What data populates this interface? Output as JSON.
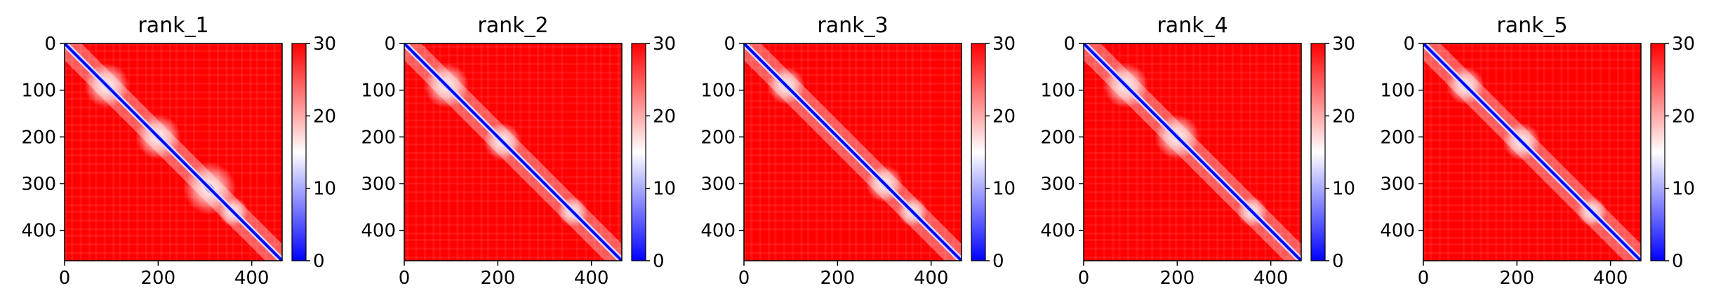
{
  "colors": {
    "low": "#0000ff",
    "mid": "#ffffff",
    "high": "#ff0000",
    "axis": "#000000",
    "background": "#ffffff"
  },
  "chart_data": [
    {
      "type": "heatmap",
      "title": "rank_1",
      "xlabel": "",
      "ylabel": "",
      "x_range": [
        0,
        465
      ],
      "y_range": [
        0,
        465
      ],
      "x_ticks": [
        0,
        200,
        400
      ],
      "y_ticks": [
        0,
        100,
        200,
        300,
        400
      ],
      "colorbar": {
        "range": [
          0,
          30
        ],
        "ticks": [
          0,
          10,
          20,
          30
        ],
        "colormap": "bwr"
      },
      "diagonal_domains": [
        {
          "center": 90,
          "radius": 30
        },
        {
          "center": 200,
          "radius": 30
        },
        {
          "center": 310,
          "radius": 35
        },
        {
          "center": 360,
          "radius": 20
        }
      ]
    },
    {
      "type": "heatmap",
      "title": "rank_2",
      "xlabel": "",
      "ylabel": "",
      "x_range": [
        0,
        465
      ],
      "y_range": [
        0,
        465
      ],
      "x_ticks": [
        0,
        200,
        400
      ],
      "y_ticks": [
        0,
        100,
        200,
        300,
        400
      ],
      "colorbar": {
        "range": [
          0,
          30
        ],
        "ticks": [
          0,
          10,
          20,
          30
        ],
        "colormap": "bwr"
      },
      "diagonal_domains": [
        {
          "center": 90,
          "radius": 30
        },
        {
          "center": 210,
          "radius": 25
        },
        {
          "center": 360,
          "radius": 20
        }
      ]
    },
    {
      "type": "heatmap",
      "title": "rank_3",
      "xlabel": "",
      "ylabel": "",
      "x_range": [
        0,
        465
      ],
      "y_range": [
        0,
        465
      ],
      "x_ticks": [
        0,
        200,
        400
      ],
      "y_ticks": [
        0,
        100,
        200,
        300,
        400
      ],
      "colorbar": {
        "range": [
          0,
          30
        ],
        "ticks": [
          0,
          10,
          20,
          30
        ],
        "colormap": "bwr"
      },
      "diagonal_domains": [
        {
          "center": 90,
          "radius": 25
        },
        {
          "center": 300,
          "radius": 25
        },
        {
          "center": 360,
          "radius": 20
        }
      ]
    },
    {
      "type": "heatmap",
      "title": "rank_4",
      "xlabel": "",
      "ylabel": "",
      "x_range": [
        0,
        465
      ],
      "y_range": [
        0,
        465
      ],
      "x_ticks": [
        0,
        200,
        400
      ],
      "y_ticks": [
        0,
        100,
        200,
        300,
        400
      ],
      "colorbar": {
        "range": [
          0,
          30
        ],
        "ticks": [
          0,
          10,
          20,
          30
        ],
        "colormap": "bwr"
      },
      "diagonal_domains": [
        {
          "center": 90,
          "radius": 30
        },
        {
          "center": 200,
          "radius": 30
        },
        {
          "center": 360,
          "radius": 20
        }
      ]
    },
    {
      "type": "heatmap",
      "title": "rank_5",
      "xlabel": "",
      "ylabel": "",
      "x_range": [
        0,
        465
      ],
      "y_range": [
        0,
        465
      ],
      "x_ticks": [
        0,
        200,
        400
      ],
      "y_ticks": [
        0,
        100,
        200,
        300,
        400
      ],
      "colorbar": {
        "range": [
          0,
          30
        ],
        "ticks": [
          0,
          10,
          20,
          30
        ],
        "colormap": "bwr"
      },
      "diagonal_domains": [
        {
          "center": 90,
          "radius": 25
        },
        {
          "center": 210,
          "radius": 25
        },
        {
          "center": 360,
          "radius": 20
        }
      ]
    }
  ]
}
